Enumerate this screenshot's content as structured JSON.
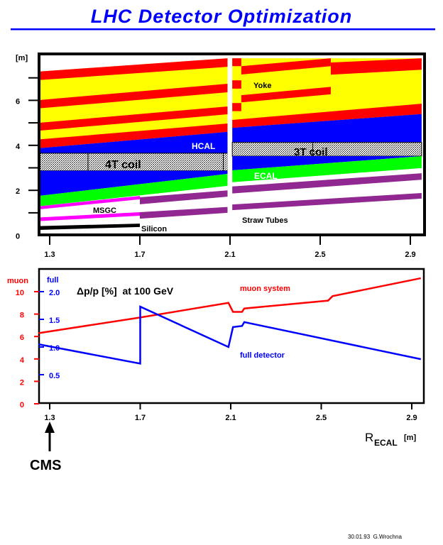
{
  "title": "LHC Detector Optimization",
  "footer": "30.01.93  G.Wrochna",
  "colors": {
    "title": "#0000ff",
    "red": "#ff0000",
    "yellow": "#ffff00",
    "blue": "#0000ff",
    "green": "#00ff00",
    "magenta": "#ff00ff",
    "purple": "#912891",
    "black": "#000000"
  },
  "chart_data": [
    {
      "type": "area",
      "ylabel": "[m]",
      "xticks": [
        "1.3",
        "1.7",
        "2.1",
        "2.5",
        "2.9"
      ],
      "yticks": [
        "0",
        "2",
        "4",
        "6"
      ],
      "xlim": [
        1.25,
        2.95
      ],
      "ylim": [
        0,
        8
      ],
      "labels": {
        "hcal": "HCAL",
        "coil4": "4T coil",
        "msgc": "MSGC",
        "silicon": "Silicon",
        "yoke": "Yoke",
        "coil3": "3T coil",
        "ecal": "ECAL",
        "straw": "Straw Tubes"
      },
      "layers": [
        {
          "part": "yoke",
          "color": "yellow",
          "x": [
            1.25,
            2.09
          ],
          "bottom": [
            3.87,
            4.6
          ],
          "top": [
            7.28,
            7.87
          ]
        },
        {
          "part": "yoke-iron",
          "color": "red",
          "x": [
            1.25,
            2.09
          ],
          "bottom": [
            6.9,
            7.49
          ],
          "top": [
            7.28,
            7.87
          ]
        },
        {
          "part": "yoke-iron",
          "color": "red",
          "x": [
            1.25,
            2.09
          ],
          "bottom": [
            5.64,
            6.36
          ],
          "top": [
            6.01,
            6.74
          ]
        },
        {
          "part": "yoke-iron",
          "color": "red",
          "x": [
            1.25,
            2.09
          ],
          "bottom": [
            4.65,
            5.38
          ],
          "top": [
            5.0,
            5.73
          ]
        },
        {
          "part": "yoke-iron",
          "color": "red",
          "x": [
            1.25,
            2.09
          ],
          "bottom": [
            3.87,
            4.6
          ],
          "top": [
            4.26,
            4.97
          ]
        },
        {
          "part": "hcal",
          "color": "blue",
          "x": [
            1.25,
            2.09
          ],
          "bottom": [
            3.65,
            3.65
          ],
          "top": [
            3.87,
            4.6
          ]
        },
        {
          "part": "coil",
          "color": "coil",
          "x": [
            1.25,
            2.09
          ],
          "bottom": [
            2.87,
            2.87
          ],
          "top": [
            3.65,
            3.65
          ],
          "dividers": [
            1.47,
            2.07
          ]
        },
        {
          "part": "hcal",
          "color": "blue",
          "x": [
            1.25,
            2.09
          ],
          "bottom": [
            1.75,
            2.73
          ],
          "top": [
            2.87,
            2.87
          ]
        },
        {
          "part": "ecal",
          "color": "green",
          "x": [
            1.25,
            2.09
          ],
          "bottom": [
            1.29,
            2.2
          ],
          "top": [
            1.75,
            2.73
          ]
        },
        {
          "part": "msgc",
          "color": "magenta",
          "x": [
            1.25,
            1.7
          ],
          "bottom": [
            1.15,
            1.6
          ],
          "top": [
            1.29,
            1.75
          ]
        },
        {
          "part": "msgc",
          "color": "magenta",
          "x": [
            1.25,
            1.7
          ],
          "bottom": [
            0.63,
            0.87
          ],
          "top": [
            0.79,
            1.03
          ]
        },
        {
          "part": "straw",
          "color": "purple",
          "x": [
            1.7,
            2.09
          ],
          "bottom": [
            1.38,
            1.72
          ],
          "top": [
            1.69,
            2.0
          ]
        },
        {
          "part": "straw",
          "color": "purple",
          "x": [
            1.7,
            2.09
          ],
          "bottom": [
            0.74,
            1.0
          ],
          "top": [
            1.03,
            1.26
          ]
        },
        {
          "part": "silicon",
          "color": "black",
          "x": [
            1.25,
            1.7
          ],
          "bottom": [
            0.24,
            0.37
          ],
          "top": [
            0.41,
            0.52
          ]
        },
        {
          "part": "yoke",
          "color": "yellow",
          "x": [
            2.11,
            2.95
          ],
          "bottom": [
            4.78,
            5.39
          ],
          "top": [
            7.87,
            7.87
          ]
        },
        {
          "part": "yoke-iron",
          "color": "red",
          "x": [
            2.11,
            2.15
          ],
          "bottom": [
            7.52,
            7.52
          ],
          "top": [
            7.87,
            7.87
          ]
        },
        {
          "part": "yoke-iron",
          "color": "red",
          "x": [
            2.11,
            2.15
          ],
          "bottom": [
            6.52,
            6.52
          ],
          "top": [
            6.89,
            6.89
          ]
        },
        {
          "part": "yoke-iron",
          "color": "red",
          "x": [
            2.11,
            2.15
          ],
          "bottom": [
            5.52,
            5.52
          ],
          "top": [
            5.88,
            5.88
          ]
        },
        {
          "part": "yoke-iron",
          "color": "red",
          "x": [
            2.15,
            2.547
          ],
          "bottom": [
            7.15,
            7.52
          ],
          "top": [
            7.52,
            7.87
          ]
        },
        {
          "part": "yoke-iron",
          "color": "red",
          "x": [
            2.547,
            2.95
          ],
          "bottom": [
            7.14,
            7.36
          ],
          "top": [
            7.68,
            7.87
          ]
        },
        {
          "part": "yoke-iron",
          "color": "red",
          "x": [
            2.15,
            2.547
          ],
          "bottom": [
            5.91,
            6.27
          ],
          "top": [
            6.23,
            6.6
          ]
        },
        {
          "part": "yoke-iron",
          "color": "red",
          "x": [
            2.11,
            2.95
          ],
          "bottom": [
            4.78,
            5.39
          ],
          "top": [
            5.13,
            5.85
          ]
        },
        {
          "part": "hcal",
          "color": "blue",
          "x": [
            2.11,
            2.95
          ],
          "bottom": [
            4.13,
            4.13
          ],
          "top": [
            4.78,
            5.39
          ]
        },
        {
          "part": "coil",
          "color": "coil",
          "x": [
            2.11,
            2.95
          ],
          "bottom": [
            3.52,
            3.52
          ],
          "top": [
            4.13,
            4.13
          ],
          "dividers": [
            2.467
          ]
        },
        {
          "part": "hcal",
          "color": "blue",
          "x": [
            2.11,
            2.95
          ],
          "bottom": [
            2.89,
            3.52
          ],
          "top": [
            3.52,
            3.52
          ]
        },
        {
          "part": "ecal",
          "color": "green",
          "x": [
            2.11,
            2.95
          ],
          "bottom": [
            2.36,
            2.99
          ],
          "top": [
            2.89,
            3.52
          ]
        },
        {
          "part": "straw",
          "color": "purple",
          "x": [
            2.11,
            2.95
          ],
          "bottom": [
            1.86,
            2.47
          ],
          "top": [
            2.17,
            2.76
          ]
        },
        {
          "part": "straw",
          "color": "purple",
          "x": [
            2.11,
            2.95
          ],
          "bottom": [
            1.12,
            1.63
          ],
          "top": [
            1.37,
            1.88
          ]
        }
      ]
    },
    {
      "type": "line",
      "title": "Δp/p [%]  at 100 GeV",
      "xlabel": "R",
      "xlabel_sub": "ECAL",
      "xlabel_unit": "[m]",
      "xticks": [
        "1.3",
        "1.7",
        "2.1",
        "2.5",
        "2.9"
      ],
      "xlim": [
        1.25,
        2.95
      ],
      "left_axis": {
        "label": "muon",
        "color": "red",
        "ticks": [
          "0",
          "2",
          "4",
          "6",
          "8",
          "10"
        ],
        "ylim": [
          0,
          11.5
        ]
      },
      "right_axis": {
        "label": "full",
        "color": "blue",
        "ticks": [
          "0.5",
          "1.0",
          "1.5",
          "2.0"
        ]
      },
      "annotation": {
        "text": "CMS",
        "x": 1.3
      },
      "series": [
        {
          "name": "muon system",
          "color": "red",
          "axis": "left",
          "x": [
            1.25,
            1.7,
            2.09,
            2.11,
            2.15,
            2.16,
            2.53,
            2.55,
            2.94
          ],
          "y": [
            6.3,
            7.7,
            9.0,
            8.2,
            8.2,
            8.5,
            9.2,
            9.6,
            11.2
          ]
        },
        {
          "name": "full detector",
          "color": "blue",
          "axis": "right",
          "x": [
            1.25,
            1.7,
            1.7,
            2.09,
            2.11,
            2.15,
            2.16,
            2.94
          ],
          "y": [
            1.05,
            0.7,
            1.73,
            1.0,
            1.36,
            1.38,
            1.45,
            0.78
          ]
        }
      ]
    }
  ]
}
